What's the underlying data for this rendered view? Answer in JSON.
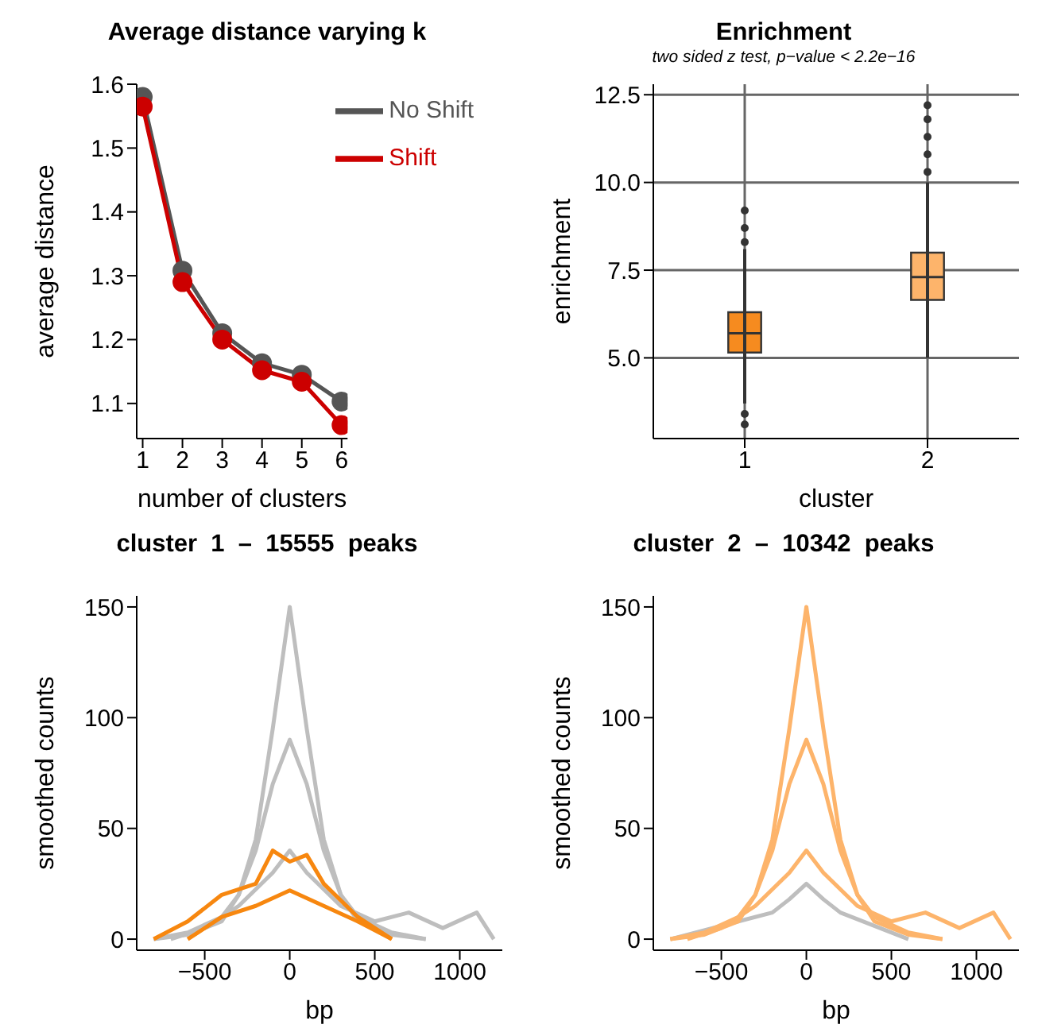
{
  "chart_data": [
    {
      "type": "line",
      "title": "Average distance varying k",
      "xlabel": "number of clusters",
      "ylabel": "average distance",
      "x": [
        1,
        2,
        3,
        4,
        5,
        6
      ],
      "xlim": [
        0.85,
        6.15
      ],
      "xticks": [
        1,
        2,
        3,
        4,
        5,
        6
      ],
      "ylim": [
        1.045,
        1.6
      ],
      "yticks": [
        1.1,
        1.2,
        1.3,
        1.4,
        1.5,
        1.6
      ],
      "marker": "circle",
      "legend": "top right",
      "series": [
        {
          "name": "No Shift",
          "color": "#555555",
          "values": [
            1.58,
            1.308,
            1.21,
            1.163,
            1.145,
            1.103
          ]
        },
        {
          "name": "Shift",
          "color": "#cc0000",
          "values": [
            1.565,
            1.29,
            1.2,
            1.152,
            1.134,
            1.066
          ]
        }
      ]
    },
    {
      "type": "box",
      "title": "Enrichment",
      "subtitle": "two sided z test, p−value < 2.2e−16",
      "xlabel": "cluster",
      "ylabel": "enrichment",
      "categories": [
        "1",
        "2"
      ],
      "colors": [
        "#f68b1f",
        "#fdb46b"
      ],
      "ylim": [
        2.7,
        12.8
      ],
      "yticks": [
        {
          "value": 5,
          "label": "5.0"
        },
        {
          "value": 7.5,
          "label": "7.5"
        },
        {
          "value": 10,
          "label": "10.0"
        },
        {
          "value": 12.5,
          "label": "12.5"
        }
      ],
      "grid": true,
      "boxes": [
        {
          "low": 3.7,
          "q1": 5.15,
          "median": 5.7,
          "q3": 6.3,
          "high": 8.1,
          "outliers": [
            3.1,
            3.4,
            8.3,
            8.7,
            9.2
          ]
        },
        {
          "low": 5.0,
          "q1": 6.65,
          "median": 7.3,
          "q3": 8.0,
          "high": 10.0,
          "outliers": [
            10.3,
            10.8,
            11.3,
            11.8,
            12.2
          ]
        }
      ]
    },
    {
      "type": "line",
      "title": "cluster  1  –  15555  peaks",
      "xlabel": "bp",
      "ylabel": "smoothed counts",
      "xlim": [
        -900,
        1250
      ],
      "xticks": [
        {
          "value": -500,
          "label": "−500"
        },
        0,
        500,
        1000
      ],
      "ylim": [
        -5,
        155
      ],
      "yticks": [
        0,
        50,
        100,
        150
      ],
      "marker": "none",
      "series": [
        {
          "color": "#bebebe",
          "x": [
            -800,
            -600,
            -400,
            -300,
            -200,
            -100,
            0,
            100,
            200,
            300,
            400,
            600,
            800
          ],
          "values": [
            0,
            2,
            8,
            20,
            45,
            95,
            150,
            95,
            45,
            20,
            8,
            2,
            0
          ]
        },
        {
          "color": "#bebebe",
          "x": [
            -800,
            -600,
            -400,
            -300,
            -200,
            -100,
            0,
            100,
            200,
            300,
            400,
            600,
            800
          ],
          "values": [
            0,
            3,
            10,
            20,
            40,
            70,
            90,
            70,
            40,
            20,
            10,
            3,
            0
          ]
        },
        {
          "color": "#bebebe",
          "x": [
            -700,
            -500,
            -300,
            -100,
            0,
            100,
            300,
            500,
            700,
            900,
            1100,
            1200
          ],
          "values": [
            0,
            5,
            15,
            30,
            40,
            30,
            15,
            8,
            12,
            5,
            12,
            0
          ]
        },
        {
          "color": "#f7870f",
          "x": [
            -800,
            -600,
            -400,
            -200,
            -100,
            0,
            100,
            200,
            400,
            600
          ],
          "values": [
            0,
            8,
            20,
            25,
            40,
            35,
            38,
            25,
            10,
            0
          ]
        },
        {
          "color": "#f7870f",
          "x": [
            -600,
            -400,
            -200,
            0,
            200,
            400,
            600
          ],
          "values": [
            0,
            10,
            15,
            22,
            15,
            8,
            0
          ]
        }
      ]
    },
    {
      "type": "line",
      "title": "cluster  2  –  10342  peaks",
      "xlabel": "bp",
      "ylabel": "smoothed counts",
      "xlim": [
        -900,
        1250
      ],
      "xticks": [
        {
          "value": -500,
          "label": "−500"
        },
        0,
        500,
        1000
      ],
      "ylim": [
        -5,
        155
      ],
      "yticks": [
        0,
        50,
        100,
        150
      ],
      "marker": "none",
      "series": [
        {
          "color": "#bebebe",
          "x": [
            -800,
            -600,
            -400,
            -200,
            -100,
            0,
            100,
            200,
            400,
            600
          ],
          "values": [
            0,
            4,
            8,
            12,
            18,
            25,
            18,
            12,
            6,
            0
          ]
        },
        {
          "color": "#fdb46b",
          "x": [
            -800,
            -600,
            -400,
            -300,
            -200,
            -100,
            0,
            100,
            200,
            300,
            400,
            600,
            800
          ],
          "values": [
            0,
            2,
            8,
            20,
            45,
            95,
            150,
            95,
            45,
            20,
            8,
            2,
            0
          ]
        },
        {
          "color": "#fdb46b",
          "x": [
            -800,
            -600,
            -400,
            -300,
            -200,
            -100,
            0,
            100,
            200,
            300,
            400,
            600,
            800
          ],
          "values": [
            0,
            3,
            10,
            20,
            40,
            70,
            90,
            70,
            40,
            20,
            10,
            3,
            0
          ]
        },
        {
          "color": "#fdb46b",
          "x": [
            -700,
            -500,
            -300,
            -100,
            0,
            100,
            300,
            500,
            700,
            900,
            1100,
            1200
          ],
          "values": [
            0,
            5,
            15,
            30,
            40,
            30,
            15,
            8,
            12,
            5,
            12,
            0
          ]
        }
      ]
    }
  ]
}
